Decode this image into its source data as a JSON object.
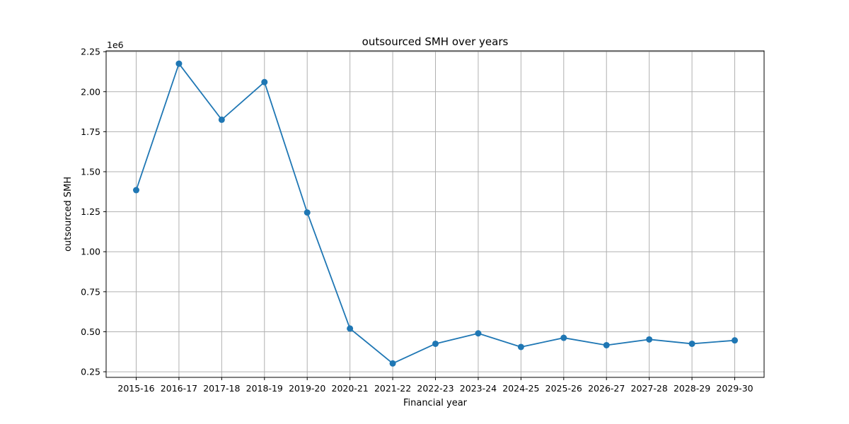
{
  "chart_data": {
    "type": "line",
    "title": "outsourced SMH over years",
    "xlabel": "Financial year",
    "ylabel": "outsourced SMH",
    "y_offset_label": "1e6",
    "y_scale": 1000000,
    "categories": [
      "2015-16",
      "2016-17",
      "2017-18",
      "2018-19",
      "2019-20",
      "2020-21",
      "2021-22",
      "2022-23",
      "2023-24",
      "2024-25",
      "2025-26",
      "2026-27",
      "2027-28",
      "2028-29",
      "2029-30"
    ],
    "series": [
      {
        "values": [
          1385000,
          2175000,
          1825000,
          2060000,
          1245000,
          520000,
          302000,
          425000,
          490000,
          405000,
          462000,
          416000,
          452000,
          425000,
          446000
        ],
        "color": "#1f77b4",
        "marker": "circle"
      }
    ],
    "ylim": [
      215000,
      2255000
    ],
    "yticks": [
      250000,
      500000,
      750000,
      1000000,
      1250000,
      1500000,
      1750000,
      2000000,
      2250000
    ],
    "ytick_labels": [
      "0.25",
      "0.50",
      "0.75",
      "1.00",
      "1.25",
      "1.50",
      "1.75",
      "2.00",
      "2.25"
    ],
    "grid": true
  }
}
